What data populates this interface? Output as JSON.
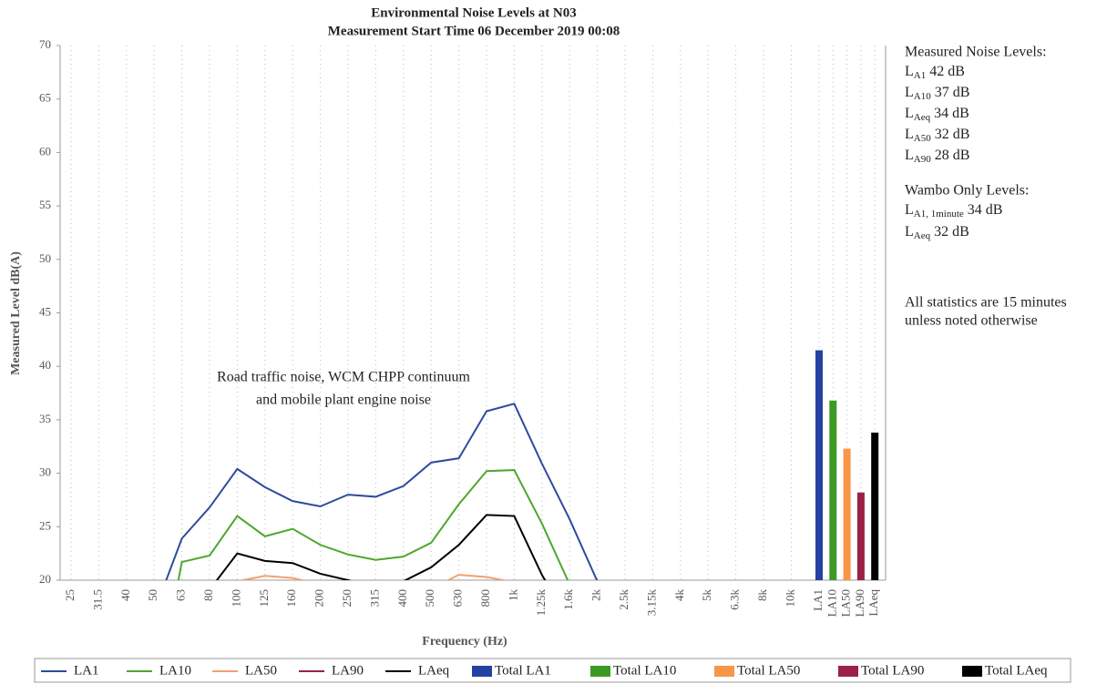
{
  "chart_data": {
    "type": "line",
    "title": "Environmental Noise Levels at N03",
    "subtitle": "Measurement Start Time 06 December 2019 00:08",
    "x_label": "Frequency (Hz)",
    "y_label": "Measured Level dB(A)",
    "categories": [
      "25",
      "31.5",
      "40",
      "50",
      "63",
      "80",
      "100",
      "125",
      "160",
      "200",
      "250",
      "315",
      "400",
      "500",
      "630",
      "800",
      "1k",
      "1.25k",
      "1.6k",
      "2k",
      "2.5k",
      "3.15k",
      "4k",
      "5k",
      "6.3k",
      "8k",
      "10k"
    ],
    "series": [
      {
        "name": "LA1",
        "color": "#2e4a9c",
        "values": [
          null,
          null,
          null,
          17,
          23.9,
          26.8,
          30.4,
          28.7,
          27.4,
          26.9,
          28.0,
          27.8,
          28.8,
          31.0,
          31.4,
          35.8,
          36.5,
          30.9,
          25.7,
          19.9,
          null,
          null,
          null,
          null,
          null,
          null,
          null
        ]
      },
      {
        "name": "LA10",
        "color": "#4ea72e",
        "values": [
          null,
          null,
          null,
          8,
          21.7,
          22.3,
          26.0,
          24.1,
          24.8,
          23.3,
          22.4,
          21.9,
          22.2,
          23.5,
          27.1,
          30.2,
          30.3,
          25.3,
          19.6,
          null,
          null,
          null,
          null,
          null,
          null,
          null,
          null
        ]
      },
      {
        "name": "LA50",
        "color": "#f4a070",
        "values": [
          null,
          null,
          null,
          null,
          null,
          18.5,
          19.9,
          20.4,
          20.2,
          19.6,
          19.0,
          null,
          null,
          19.2,
          20.5,
          20.3,
          19.8,
          18.5,
          null,
          null,
          null,
          null,
          null,
          null,
          null,
          null,
          null
        ]
      },
      {
        "name": "LA90",
        "color": "#9b2246",
        "values": [
          null,
          null,
          null,
          null,
          null,
          null,
          null,
          null,
          null,
          null,
          null,
          null,
          null,
          null,
          null,
          null,
          null,
          null,
          null,
          null,
          null,
          null,
          null,
          null,
          null,
          null,
          null
        ]
      },
      {
        "name": "LAeq",
        "color": "#000000",
        "values": [
          null,
          null,
          null,
          null,
          17,
          19.1,
          22.5,
          21.8,
          21.6,
          20.6,
          20.0,
          19.3,
          19.9,
          21.2,
          23.3,
          26.1,
          26.0,
          20.5,
          16,
          null,
          null,
          null,
          null,
          null,
          null,
          null,
          null
        ]
      }
    ],
    "totals": {
      "categories": [
        "LA1",
        "LA10",
        "LA50",
        "LA90",
        "LAeq"
      ],
      "names": [
        "Total LA1",
        "Total LA10",
        "Total LA50",
        "Total LA90",
        "Total LAeq"
      ],
      "colors": [
        "#2442a0",
        "#3c9a23",
        "#f79646",
        "#9b2246",
        "#000000"
      ],
      "values": [
        41.5,
        36.8,
        32.3,
        28.2,
        33.8
      ]
    },
    "ylim": [
      20,
      70
    ],
    "yticks": [
      20,
      25,
      30,
      35,
      40,
      45,
      50,
      55,
      60,
      65,
      70
    ],
    "grid": true,
    "legend": "bottom",
    "annotation": [
      "Road traffic noise, WCM CHPP continuum",
      "and mobile plant engine noise"
    ],
    "notes": {
      "measured_heading": "Measured Noise Levels:",
      "measured": [
        {
          "symbol": "L",
          "subscript": "A1",
          "text": "42 dB"
        },
        {
          "symbol": "L",
          "subscript": "A10",
          "text": "37 dB"
        },
        {
          "symbol": "L",
          "subscript": "Aeq",
          "text": "34 dB"
        },
        {
          "symbol": "L",
          "subscript": "A50",
          "text": "32 dB"
        },
        {
          "symbol": "L",
          "subscript": "A90",
          "text": "28 dB"
        }
      ],
      "wambo_heading": "Wambo Only Levels:",
      "wambo": [
        {
          "symbol": "L",
          "subscript": "A1, 1minute",
          "text": "34 dB"
        },
        {
          "symbol": "L",
          "subscript": "Aeq",
          "text": "32 dB"
        }
      ],
      "footnote": [
        "All statistics are 15 minutes",
        "unless noted otherwise"
      ]
    }
  }
}
